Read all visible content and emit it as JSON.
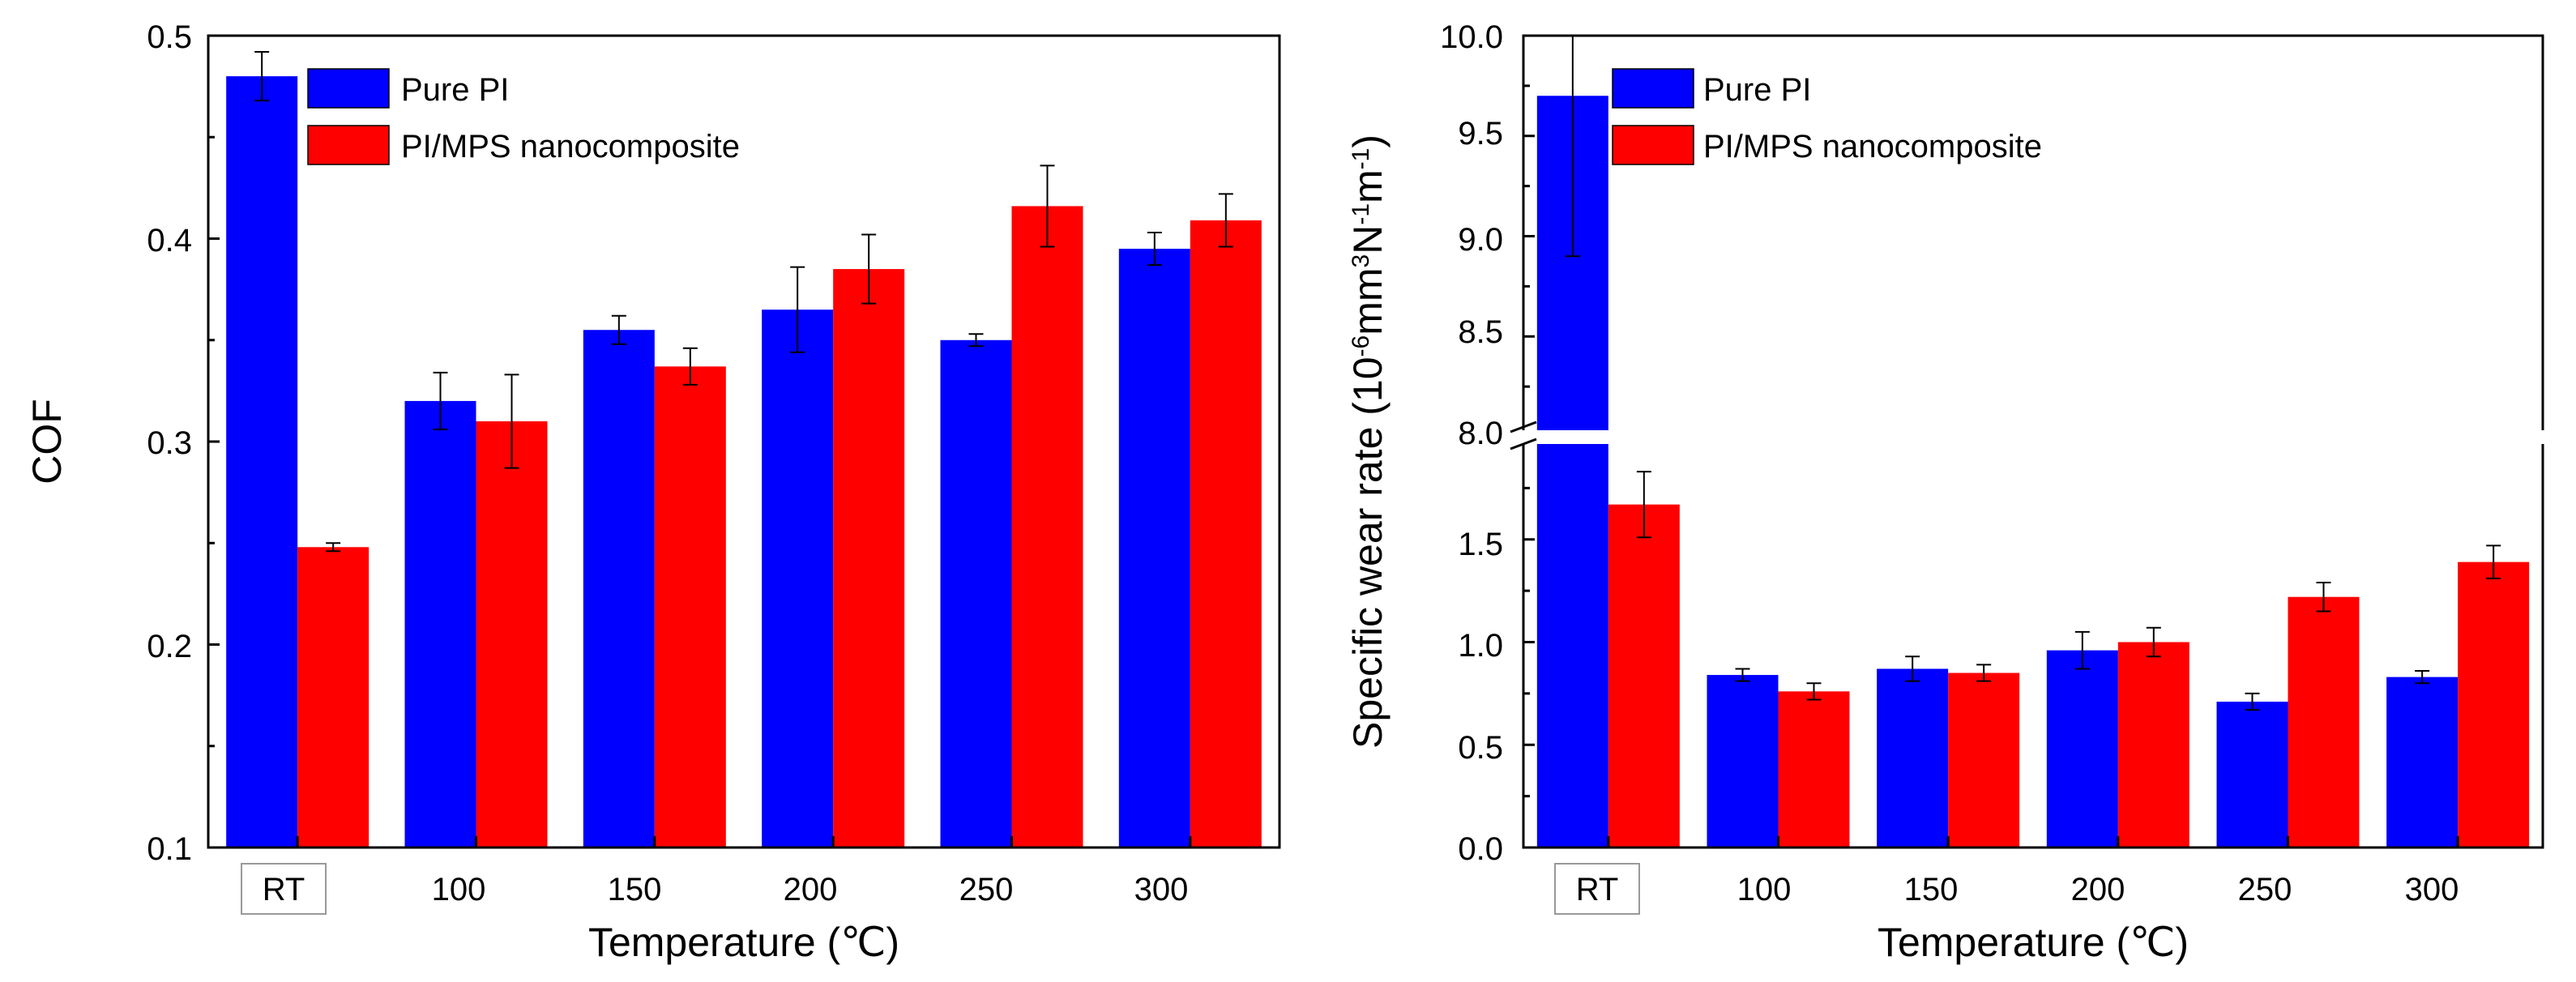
{
  "chart_data": [
    {
      "id": "cof",
      "type": "bar",
      "categories": [
        "RT",
        "100",
        "150",
        "200",
        "250",
        "300"
      ],
      "series": [
        {
          "name": "Pure PI",
          "color": "#0000ff",
          "values": [
            0.48,
            0.32,
            0.355,
            0.365,
            0.35,
            0.395
          ],
          "errors": [
            0.012,
            0.014,
            0.007,
            0.021,
            0.003,
            0.008
          ]
        },
        {
          "name": "PI/MPS nanocomposite",
          "color": "#ff0000",
          "values": [
            0.248,
            0.31,
            0.337,
            0.385,
            0.416,
            0.409
          ],
          "errors": [
            0.002,
            0.023,
            0.009,
            0.017,
            0.02,
            0.013
          ]
        }
      ],
      "xlabel": "Temperature (℃)",
      "ylabel": "COF",
      "ylim": [
        0.1,
        0.5
      ],
      "yticks": [
        "0.1",
        "0.2",
        "0.3",
        "0.4",
        "0.5"
      ],
      "legend": "top-left",
      "boxed_category": "RT"
    },
    {
      "id": "wear",
      "type": "bar",
      "categories": [
        "RT",
        "100",
        "150",
        "200",
        "250",
        "300"
      ],
      "series": [
        {
          "name": "Pure PI",
          "color": "#0000ff",
          "values": [
            9.7,
            0.84,
            0.87,
            0.96,
            0.71,
            0.83
          ],
          "errors": [
            0.8,
            0.03,
            0.06,
            0.09,
            0.04,
            0.03
          ]
        },
        {
          "name": "PI/MPS nanocomposite",
          "color": "#ff0000",
          "values": [
            1.67,
            0.76,
            0.85,
            1.0,
            1.22,
            1.39
          ],
          "errors": [
            0.16,
            0.04,
            0.04,
            0.07,
            0.07,
            0.08
          ]
        }
      ],
      "xlabel": "Temperature (℃)",
      "ylabel_main": "Specific wear rate (10",
      "ylabel_exp1": "-6",
      "ylabel_mid1": "mm",
      "ylabel_exp2": "3",
      "ylabel_mid2": "N",
      "ylabel_exp3": "-1",
      "ylabel_mid3": "m",
      "ylabel_exp4": "-1",
      "ylabel_end": ")",
      "axis_break": {
        "lower_range": [
          0.0,
          2.0
        ],
        "upper_range": [
          8.0,
          10.0
        ]
      },
      "yticks_lower": [
        "0.0",
        "0.5",
        "1.0",
        "1.5",
        "8.0"
      ],
      "yticks_upper": [
        "8.0",
        "8.5",
        "9.0",
        "9.5",
        "10.0"
      ],
      "legend": "top-left",
      "boxed_category": "RT"
    }
  ]
}
